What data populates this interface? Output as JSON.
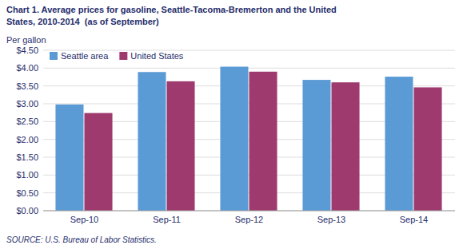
{
  "chart_data": {
    "type": "bar",
    "title": "Chart 1. Average prices for gasoline, Seattle-Tacoma-Bremerton and the United\nStates, 2010-2014  (as of September)",
    "ylabel": "Per gallon",
    "annotations": [
      "SOURCE: U.S. Bureau of Labor Statistics."
    ],
    "categories": [
      "Sep-10",
      "Sep-11",
      "Sep-12",
      "Sep-13",
      "Sep-14"
    ],
    "series": [
      {
        "name": "Seattle area",
        "color": "#5B9BD5",
        "values": [
          2.98,
          3.89,
          4.04,
          3.67,
          3.76
        ]
      },
      {
        "name": "United States",
        "color": "#9E3A6E",
        "values": [
          2.74,
          3.63,
          3.9,
          3.6,
          3.46
        ]
      }
    ],
    "ylim": [
      0,
      4.5
    ],
    "yticks": [
      {
        "value": 0.0,
        "label": "$0.00"
      },
      {
        "value": 0.5,
        "label": "$0.50"
      },
      {
        "value": 1.0,
        "label": "$1.00"
      },
      {
        "value": 1.5,
        "label": "$1.50"
      },
      {
        "value": 2.0,
        "label": "$2.00"
      },
      {
        "value": 2.5,
        "label": "$2.50"
      },
      {
        "value": 3.0,
        "label": "$3.00"
      },
      {
        "value": 3.5,
        "label": "$3.50"
      },
      {
        "value": 4.0,
        "label": "$4.00"
      },
      {
        "value": 4.5,
        "label": "$4.50"
      }
    ],
    "grid": true,
    "legend": "upper left"
  }
}
